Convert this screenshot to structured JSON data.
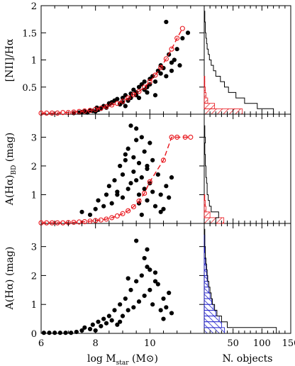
{
  "colors": {
    "axis": "#000000",
    "points": "#000000",
    "red": "#e8141b",
    "blue": "#1414c8"
  },
  "chart_data": [
    {
      "type": "scatter",
      "panel": "top-left",
      "ylabel": "[NII]/Hα",
      "ylim": [
        0,
        2
      ],
      "xlim": [
        6,
        12
      ],
      "yticks": [
        0.5,
        1,
        1.5,
        2
      ],
      "yticks_labels": [
        "0.5",
        "1",
        "1.5",
        "2"
      ],
      "xticks": [
        6,
        8,
        10
      ],
      "xticks_labels": [
        "6",
        "8",
        "10"
      ],
      "x": [
        7.2,
        7.4,
        7.5,
        7.6,
        7.7,
        7.8,
        7.9,
        8.0,
        8.05,
        8.1,
        8.2,
        8.3,
        8.4,
        8.5,
        8.5,
        8.6,
        8.7,
        8.8,
        8.9,
        9.0,
        9.0,
        9.1,
        9.2,
        9.3,
        9.3,
        9.4,
        9.5,
        9.5,
        9.6,
        9.7,
        9.8,
        9.8,
        9.9,
        10.0,
        10.0,
        10.1,
        10.2,
        10.3,
        10.4,
        10.4,
        10.5,
        10.6,
        10.7,
        10.8,
        10.9,
        11.0,
        11.1,
        11.2,
        11.4,
        9.1,
        9.6,
        10.2,
        10.8,
        8.9,
        9.9,
        10.6
      ],
      "y": [
        0.02,
        0.03,
        0.04,
        0.05,
        0.03,
        0.07,
        0.06,
        0.05,
        0.12,
        0.08,
        0.1,
        0.15,
        0.12,
        0.2,
        0.18,
        0.22,
        0.25,
        0.28,
        0.2,
        0.3,
        0.22,
        0.35,
        0.25,
        0.38,
        0.3,
        0.45,
        0.35,
        0.4,
        0.5,
        0.55,
        0.45,
        0.6,
        0.5,
        0.65,
        0.55,
        0.7,
        0.6,
        0.8,
        0.75,
        0.9,
        0.85,
        0.7,
        1.1,
        0.95,
        1.0,
        1.2,
        0.9,
        1.4,
        1.5,
        0.15,
        0.3,
        0.35,
        0.8,
        0.18,
        0.4,
        1.7
      ],
      "binned_x": [
        6.0,
        6.2,
        6.4,
        6.6,
        6.8,
        7.0,
        7.2,
        7.4,
        7.6,
        7.8,
        8.0,
        8.2,
        8.4,
        8.6,
        8.8,
        9.0,
        9.2,
        9.4,
        9.6,
        9.8,
        10.0,
        10.2,
        10.4,
        10.6,
        10.8,
        11.0,
        11.2
      ],
      "binned_y": [
        0.02,
        0.02,
        0.02,
        0.02,
        0.03,
        0.03,
        0.04,
        0.05,
        0.06,
        0.07,
        0.09,
        0.11,
        0.14,
        0.17,
        0.2,
        0.24,
        0.3,
        0.36,
        0.42,
        0.5,
        0.6,
        0.72,
        0.86,
        1.02,
        1.2,
        1.4,
        1.58
      ],
      "fit_curve": true
    },
    {
      "type": "scatter",
      "panel": "middle-left",
      "ylabel": "A(Hα)BD   (mag)",
      "ylim": [
        0,
        3.8
      ],
      "xlim": [
        6,
        12
      ],
      "yticks": [
        1,
        2,
        3
      ],
      "yticks_labels": [
        "1",
        "2",
        "3"
      ],
      "xticks": [
        6,
        8,
        10
      ],
      "xticks_labels": [
        "6",
        "8",
        "10"
      ],
      "x": [
        7.5,
        7.8,
        8.0,
        8.1,
        8.3,
        8.4,
        8.5,
        8.6,
        8.7,
        8.8,
        8.9,
        9.0,
        9.0,
        9.1,
        9.2,
        9.2,
        9.3,
        9.4,
        9.4,
        9.5,
        9.5,
        9.6,
        9.6,
        9.7,
        9.7,
        9.8,
        9.8,
        9.9,
        9.9,
        10.0,
        10.0,
        10.1,
        10.1,
        10.2,
        10.3,
        10.4,
        10.5,
        10.6,
        10.7,
        10.8,
        9.3,
        9.5,
        9.7,
        9.1,
        8.8,
        9.9,
        10.4,
        9.6
      ],
      "y": [
        0.4,
        0.3,
        0.5,
        0.8,
        0.6,
        1.0,
        1.3,
        0.7,
        1.5,
        1.0,
        2.0,
        1.7,
        0.9,
        2.2,
        1.2,
        2.6,
        1.4,
        2.3,
        1.8,
        3.3,
        1.5,
        2.1,
        1.0,
        3.0,
        1.6,
        2.5,
        1.2,
        1.9,
        0.8,
        2.8,
        1.4,
        1.1,
        2.2,
        0.6,
        1.7,
        1.0,
        0.5,
        1.3,
        0.9,
        1.6,
        3.4,
        2.9,
        0.3,
        2.4,
        1.1,
        2.0,
        0.4,
        0.7
      ],
      "binned_x": [
        6.0,
        6.2,
        6.4,
        6.6,
        6.8,
        7.0,
        7.2,
        7.4,
        7.6,
        7.8,
        8.0,
        8.2,
        8.4,
        8.6,
        8.8,
        9.0,
        9.2,
        9.4,
        9.6,
        9.8,
        10.0,
        10.5,
        10.8,
        11.0,
        11.3,
        11.5
      ],
      "binned_y": [
        0.02,
        0.02,
        0.02,
        0.02,
        0.02,
        0.03,
        0.04,
        0.05,
        0.06,
        0.08,
        0.1,
        0.12,
        0.15,
        0.2,
        0.26,
        0.34,
        0.44,
        0.58,
        0.78,
        1.05,
        1.45,
        2.2,
        3.0,
        3.0,
        3.0,
        3.0
      ],
      "fit_curve": true
    },
    {
      "type": "scatter",
      "panel": "bottom-left",
      "ylabel": "A(Hα)   (mag)",
      "xlabel": "log Mstar   (M⊙)",
      "ylim": [
        0,
        3.8
      ],
      "xlim": [
        6,
        12
      ],
      "yticks": [
        0,
        1,
        2,
        3
      ],
      "yticks_labels": [
        "0",
        "1",
        "2",
        "3"
      ],
      "xticks": [
        6,
        8,
        10
      ],
      "xticks_labels": [
        "6",
        "8",
        "10"
      ],
      "x": [
        6.1,
        6.3,
        6.5,
        6.7,
        6.9,
        7.1,
        7.3,
        7.5,
        7.6,
        7.8,
        7.9,
        8.0,
        8.1,
        8.2,
        8.3,
        8.4,
        8.5,
        8.6,
        8.7,
        8.8,
        8.9,
        9.0,
        9.1,
        9.2,
        9.3,
        9.4,
        9.5,
        9.6,
        9.7,
        9.8,
        9.9,
        10.0,
        10.1,
        10.2,
        10.3,
        10.4,
        10.5,
        10.6,
        10.7,
        10.8,
        9.5,
        9.8,
        10.0,
        9.2,
        8.9,
        10.2,
        9.9,
        10.5
      ],
      "y": [
        0.02,
        0.02,
        0.02,
        0.02,
        0.02,
        0.02,
        0.05,
        0.1,
        0.2,
        0.15,
        0.3,
        0.1,
        0.4,
        0.25,
        0.5,
        0.35,
        0.6,
        0.45,
        0.8,
        0.3,
        1.0,
        0.6,
        1.2,
        0.8,
        1.5,
        0.9,
        1.8,
        1.1,
        2.0,
        1.3,
        2.3,
        1.5,
        1.0,
        2.1,
        1.7,
        0.8,
        1.2,
        0.9,
        1.4,
        0.7,
        3.2,
        2.6,
        2.2,
        1.9,
        0.4,
        1.8,
        2.9,
        0.5
      ]
    }
  ],
  "hist_panels": [
    {
      "panel": "top-right",
      "bin_edges": [
        0,
        0.1,
        0.2,
        0.3,
        0.4,
        0.5,
        0.6,
        0.7,
        0.8,
        0.9,
        1.0,
        1.1,
        1.2,
        1.3,
        1.4,
        1.5,
        1.6,
        1.7,
        1.8,
        1.9,
        2.0
      ],
      "outline_counts": [
        120,
        92,
        70,
        55,
        42,
        35,
        28,
        20,
        16,
        12,
        9,
        7,
        5,
        4,
        3,
        2,
        2,
        1,
        1,
        0
      ],
      "hatched_counts": [
        66,
        18,
        6,
        3,
        2,
        1,
        1,
        0,
        0,
        0,
        0,
        0,
        0,
        0,
        0,
        0,
        0,
        0,
        0,
        0
      ],
      "hatch_color": "red"
    },
    {
      "panel": "middle-right",
      "bin_edges": [
        0,
        0.2,
        0.4,
        0.6,
        0.8,
        1.0,
        1.2,
        1.4,
        1.6,
        1.8,
        2.0,
        2.2,
        2.4,
        2.6,
        2.8,
        3.0,
        3.2,
        3.4,
        3.6,
        3.8
      ],
      "outline_counts": [
        20,
        25,
        12,
        9,
        7,
        5,
        5,
        4,
        3,
        3,
        2,
        2,
        1,
        1,
        2,
        1,
        1,
        0,
        0
      ],
      "hatched_counts": [
        34,
        10,
        3,
        2,
        1,
        0,
        0,
        0,
        0,
        0,
        0,
        0,
        0,
        0,
        0,
        0,
        0,
        0,
        0
      ],
      "hatch_color": "red"
    },
    {
      "panel": "bottom-right",
      "bin_edges": [
        0,
        0.2,
        0.4,
        0.6,
        0.8,
        1.0,
        1.2,
        1.4,
        1.6,
        1.8,
        2.0,
        2.2,
        2.4,
        2.6,
        2.8,
        3.0,
        3.2,
        3.4,
        3.6,
        3.8
      ],
      "outline_counts": [
        125,
        40,
        30,
        22,
        18,
        14,
        12,
        10,
        8,
        6,
        5,
        4,
        3,
        2,
        2,
        1,
        1,
        1,
        0
      ],
      "hatched_counts": [
        35,
        30,
        26,
        20,
        16,
        13,
        10,
        8,
        6,
        5,
        4,
        3,
        2,
        2,
        1,
        1,
        1,
        0,
        0
      ],
      "hatch_color": "blue",
      "xlabel": "N. objects",
      "xticks": [
        50,
        100,
        150
      ],
      "xticks_labels": [
        "50",
        "100",
        "150"
      ],
      "xlim": [
        0,
        150
      ]
    }
  ]
}
